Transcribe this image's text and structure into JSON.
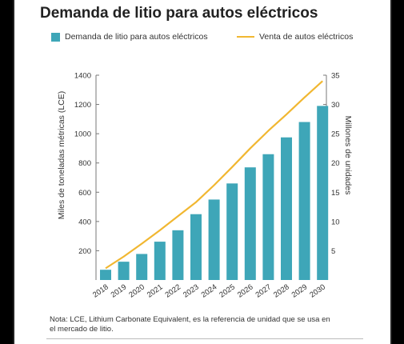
{
  "colors": {
    "bar": "#3ea6b8",
    "line": "#f1b731",
    "axis": "#777777"
  },
  "chart_data": {
    "type": "bar",
    "title": "Demanda de litio para autos eléctricos",
    "legend_placement": "top",
    "categories": [
      "2018",
      "2019",
      "2020",
      "2021",
      "2022",
      "2023",
      "2024",
      "2025",
      "2026",
      "2027",
      "2028",
      "2029",
      "2030"
    ],
    "series": [
      {
        "name": "Demanda de litio para autos eléctricos",
        "type": "bar",
        "axis": "left",
        "values": [
          70,
          125,
          178,
          262,
          340,
          450,
          550,
          660,
          770,
          860,
          975,
          1080,
          1190
        ]
      },
      {
        "name": "Venta de autos eléctricos",
        "type": "line",
        "axis": "right",
        "values": [
          2,
          4,
          6.2,
          8.5,
          10.9,
          13.3,
          16.2,
          19.3,
          22.5,
          25.5,
          28.3,
          31.2,
          34
        ]
      }
    ],
    "ylabel": "Miles de toneladas métricas (LCE)",
    "ylim": [
      0,
      1400
    ],
    "yticks": [
      200,
      400,
      600,
      800,
      1000,
      1200,
      1400
    ],
    "y2label": "Millones de unidades",
    "y2lim": [
      0,
      35
    ],
    "y2ticks": [
      5,
      10,
      15,
      20,
      25,
      30,
      35
    ],
    "grid": false
  },
  "note": "Nota: LCE, Lithium Carbonate Equivalent, es la referencia de unidad que se usa en el mercado de litio."
}
